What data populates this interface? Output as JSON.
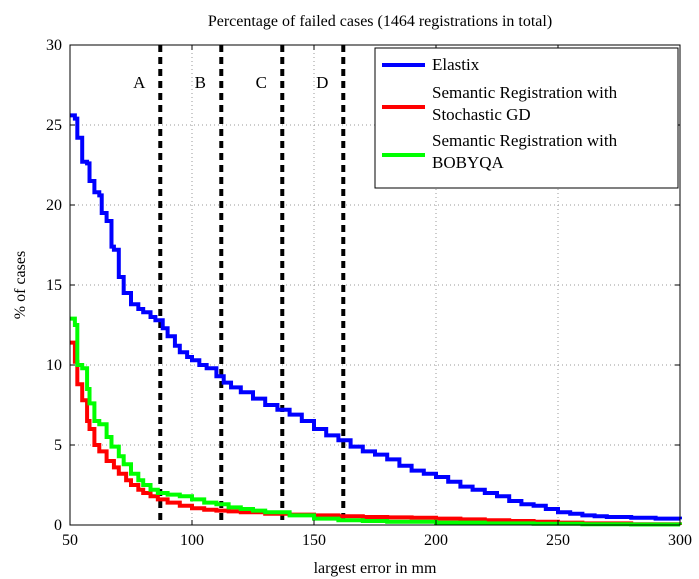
{
  "chart_data": {
    "type": "line",
    "title": "Percentage of failed cases (1464 registrations in total)",
    "xlabel": "largest error in mm",
    "ylabel": "% of cases",
    "xlim": [
      50,
      300
    ],
    "ylim": [
      0,
      30
    ],
    "xticks": [
      50,
      100,
      150,
      200,
      250,
      300
    ],
    "yticks": [
      0,
      5,
      10,
      15,
      20,
      25,
      30
    ],
    "grid": "dotted",
    "legend_position": "top-right",
    "thresholds": [
      {
        "label": "A",
        "x": 87
      },
      {
        "label": "B",
        "x": 112
      },
      {
        "label": "C",
        "x": 137
      },
      {
        "label": "D",
        "x": 162
      }
    ],
    "series": [
      {
        "name": "Elastix",
        "color": "#0000ff",
        "x": [
          50,
          52,
          53,
          55,
          57,
          58,
          60,
          62,
          63,
          65,
          67,
          68,
          70,
          72,
          75,
          78,
          80,
          83,
          85,
          88,
          90,
          93,
          95,
          98,
          100,
          103,
          106,
          110,
          113,
          116,
          120,
          125,
          130,
          135,
          140,
          145,
          150,
          155,
          160,
          165,
          170,
          175,
          180,
          185,
          190,
          195,
          200,
          205,
          210,
          215,
          220,
          225,
          230,
          235,
          240,
          245,
          250,
          255,
          260,
          265,
          270,
          280,
          290,
          300
        ],
        "y": [
          25.6,
          25.4,
          24.2,
          22.7,
          22.6,
          21.5,
          20.8,
          20.6,
          19.5,
          19.0,
          17.4,
          17.2,
          15.5,
          14.5,
          13.8,
          13.5,
          13.3,
          13.0,
          12.8,
          12.3,
          11.8,
          11.2,
          10.8,
          10.5,
          10.3,
          10.0,
          9.8,
          9.3,
          8.9,
          8.6,
          8.3,
          7.9,
          7.5,
          7.2,
          6.9,
          6.5,
          6.0,
          5.6,
          5.3,
          4.9,
          4.6,
          4.4,
          4.1,
          3.7,
          3.4,
          3.2,
          3.0,
          2.7,
          2.4,
          2.2,
          2.0,
          1.8,
          1.5,
          1.3,
          1.2,
          1.0,
          0.8,
          0.7,
          0.6,
          0.55,
          0.5,
          0.45,
          0.4,
          0.35
        ]
      },
      {
        "name": "Semantic Registration with Stochastic GD",
        "color": "#ff0000",
        "x": [
          50,
          52,
          53,
          55,
          57,
          58,
          60,
          62,
          65,
          68,
          70,
          73,
          75,
          78,
          80,
          83,
          86,
          90,
          95,
          100,
          105,
          110,
          115,
          120,
          130,
          140,
          150,
          160,
          170,
          180,
          190,
          200,
          210,
          220,
          230,
          240,
          250,
          260,
          280,
          300
        ],
        "y": [
          11.4,
          10.2,
          8.8,
          7.8,
          6.5,
          6.0,
          5.0,
          4.6,
          4.0,
          3.6,
          3.2,
          2.8,
          2.5,
          2.2,
          2.0,
          1.8,
          1.6,
          1.4,
          1.2,
          1.05,
          0.95,
          0.9,
          0.85,
          0.8,
          0.7,
          0.65,
          0.6,
          0.55,
          0.5,
          0.48,
          0.45,
          0.4,
          0.35,
          0.3,
          0.25,
          0.2,
          0.15,
          0.1,
          0.05,
          0.0
        ]
      },
      {
        "name": "Semantic Registration with BOBYQA",
        "color": "#00ff00",
        "x": [
          50,
          52,
          53,
          55,
          57,
          58,
          60,
          62,
          65,
          67,
          70,
          72,
          75,
          78,
          80,
          83,
          86,
          90,
          95,
          100,
          105,
          110,
          115,
          120,
          125,
          130,
          140,
          150,
          160,
          170,
          180,
          200,
          220,
          240,
          260,
          280,
          300
        ],
        "y": [
          12.9,
          12.5,
          10.0,
          9.8,
          8.5,
          7.6,
          6.5,
          6.3,
          5.5,
          4.9,
          4.3,
          3.8,
          3.2,
          2.8,
          2.5,
          2.2,
          2.0,
          1.9,
          1.8,
          1.6,
          1.4,
          1.3,
          1.1,
          1.0,
          0.9,
          0.8,
          0.6,
          0.4,
          0.3,
          0.25,
          0.2,
          0.15,
          0.1,
          0.08,
          0.05,
          0.03,
          0.02
        ]
      }
    ],
    "legend": [
      {
        "color": "#0000ff",
        "lines": [
          "Elastix"
        ]
      },
      {
        "color": "#ff0000",
        "lines": [
          "Semantic Registration with",
          "Stochastic GD"
        ]
      },
      {
        "color": "#00ff00",
        "lines": [
          "Semantic Registration with",
          "BOBYQA"
        ]
      }
    ]
  }
}
